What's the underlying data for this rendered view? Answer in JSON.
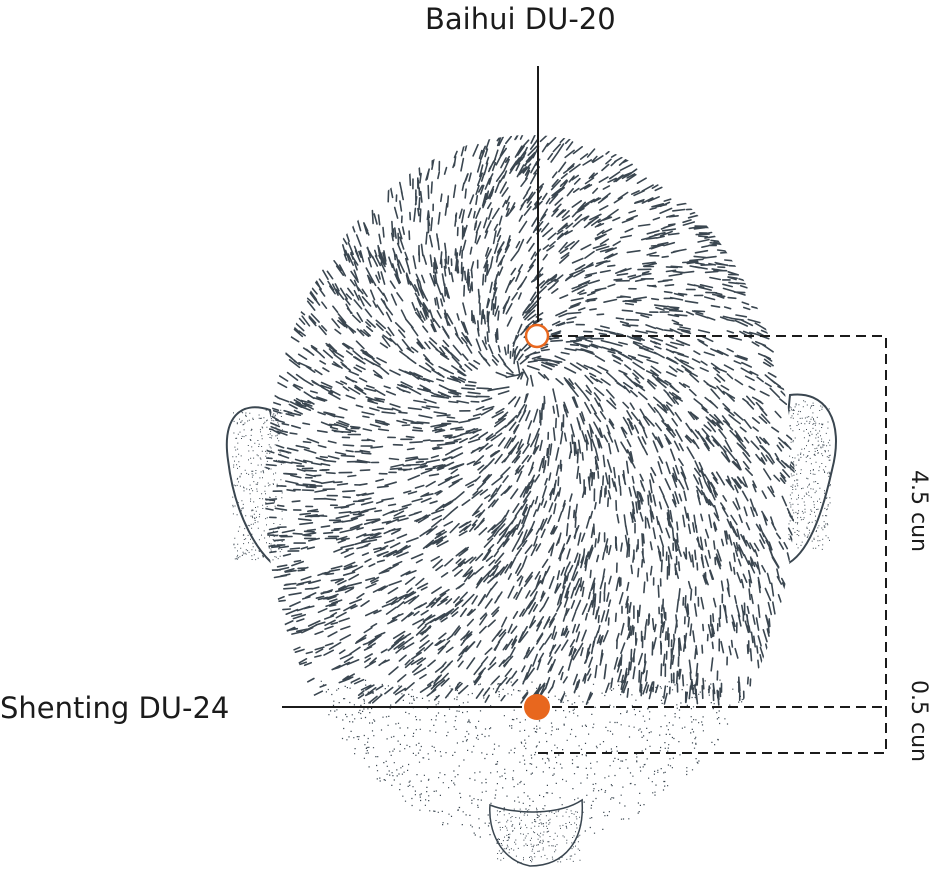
{
  "labels": {
    "upper_point": "Baihui DU-20",
    "lower_point": "Shenting DU-24",
    "upper_distance": "4.5 cun",
    "lower_distance": "0.5 cun"
  },
  "colors": {
    "accent": "#e8671e",
    "ink": "#3a4650",
    "line": "#1b1b1b"
  }
}
